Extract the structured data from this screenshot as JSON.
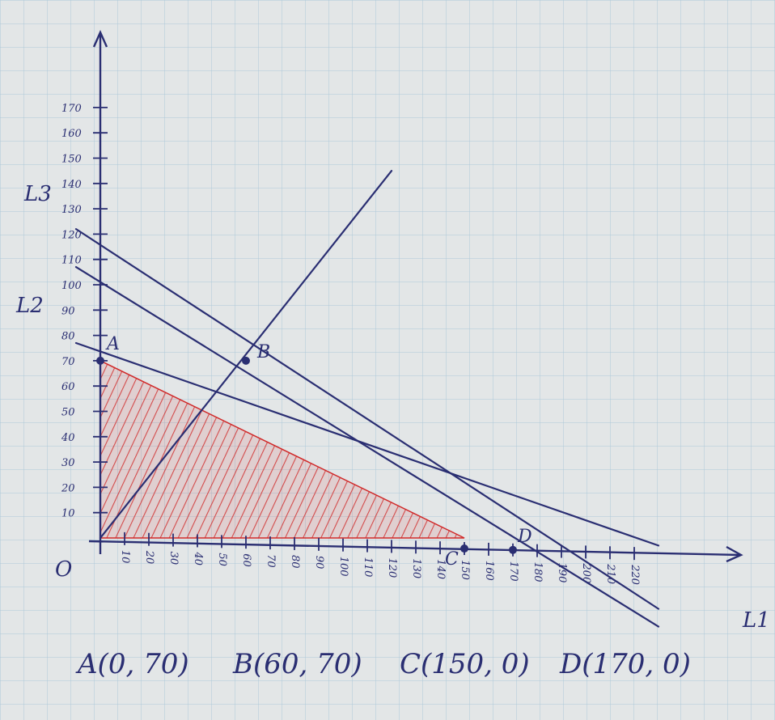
{
  "colors": {
    "paper": "#e3e6e7",
    "grid": "#aec8d8",
    "ink": "#2a2e72",
    "shade": "#d12a2a"
  },
  "chart_data": {
    "type": "line",
    "title": "",
    "xlabel": "",
    "ylabel": "",
    "xlim": [
      0,
      230
    ],
    "ylim": [
      0,
      180
    ],
    "x_ticks": [
      "10",
      "20",
      "30",
      "40",
      "50",
      "60",
      "70",
      "80",
      "90",
      "100",
      "110",
      "120",
      "130",
      "140",
      "150",
      "160",
      "170",
      "180",
      "190",
      "200",
      "210",
      "220"
    ],
    "y_ticks": [
      "10",
      "20",
      "30",
      "40",
      "50",
      "60",
      "70",
      "80",
      "90",
      "100",
      "110",
      "120",
      "130",
      "140",
      "150",
      "160",
      "170"
    ],
    "series": [
      {
        "name": "L1",
        "x": [
          -10,
          230
        ],
        "y": [
          77,
          -3
        ]
      },
      {
        "name": "L2",
        "x": [
          -10,
          230
        ],
        "y": [
          107,
          -35
        ]
      },
      {
        "name": "L3",
        "x": [
          -10,
          230
        ],
        "y": [
          122,
          -28
        ]
      },
      {
        "name": "",
        "x": [
          0,
          120
        ],
        "y": [
          0,
          145
        ]
      }
    ],
    "shaded_region": [
      [
        0,
        70
      ],
      [
        0,
        0
      ],
      [
        150,
        0
      ]
    ],
    "points": [
      {
        "name": "A",
        "x": 0,
        "y": 70
      },
      {
        "name": "B",
        "x": 60,
        "y": 70
      },
      {
        "name": "C",
        "x": 150,
        "y": 0
      },
      {
        "name": "D",
        "x": 170,
        "y": 0
      }
    ],
    "origin_label": "O"
  },
  "caption": {
    "A": "A(0, 70)",
    "B": "B(60, 70)",
    "C": "C(150, 0)",
    "D": "D(170, 0)"
  }
}
